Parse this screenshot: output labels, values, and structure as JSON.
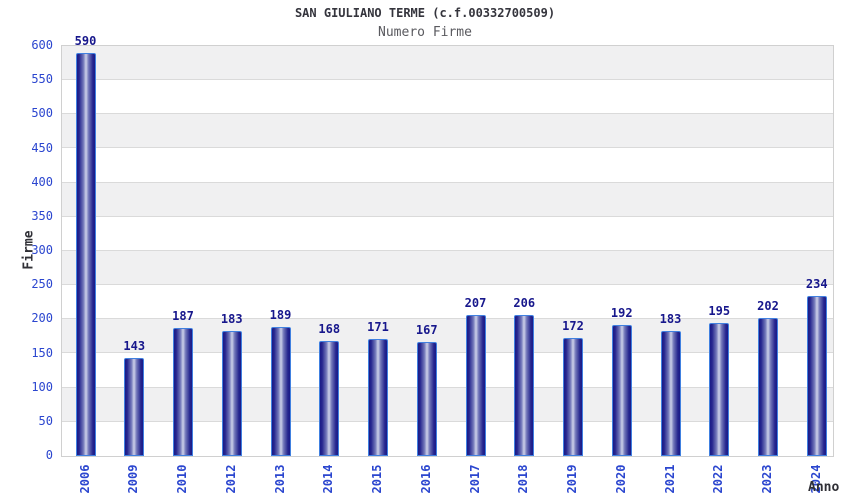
{
  "chart_data": {
    "type": "bar",
    "title": "SAN GIULIANO TERME (c.f.00332700509)",
    "subtitle": "Numero Firme",
    "xlabel": "Anno",
    "ylabel": "Firme",
    "categories": [
      "2006",
      "2009",
      "2010",
      "2012",
      "2013",
      "2014",
      "2015",
      "2016",
      "2017",
      "2018",
      "2019",
      "2020",
      "2021",
      "2022",
      "2023",
      "2024"
    ],
    "values": [
      590,
      143,
      187,
      183,
      189,
      168,
      171,
      167,
      207,
      206,
      172,
      192,
      183,
      195,
      202,
      234
    ],
    "ylim": [
      0,
      600
    ],
    "ytick_step": 50,
    "grid": {
      "style": "alternating horizontal bands of 50 units, gray over white, with light gridlines",
      "legend": "none"
    },
    "colors": {
      "title": "#35353d",
      "subtitle": "#5a5a5f",
      "axis_title": "#303036",
      "tick_label": "#2b46cf",
      "value_label": "#17178c",
      "bar_border": "#4080e0",
      "bar_dark": "#1a1a87",
      "bar_mid": "#7075b8",
      "bar_light": "#cdd1e9",
      "band_gray": "#f0f0f1",
      "grid_line": "#dadada",
      "plot_border": "#d0d0d0",
      "background": "#ffffff"
    }
  }
}
